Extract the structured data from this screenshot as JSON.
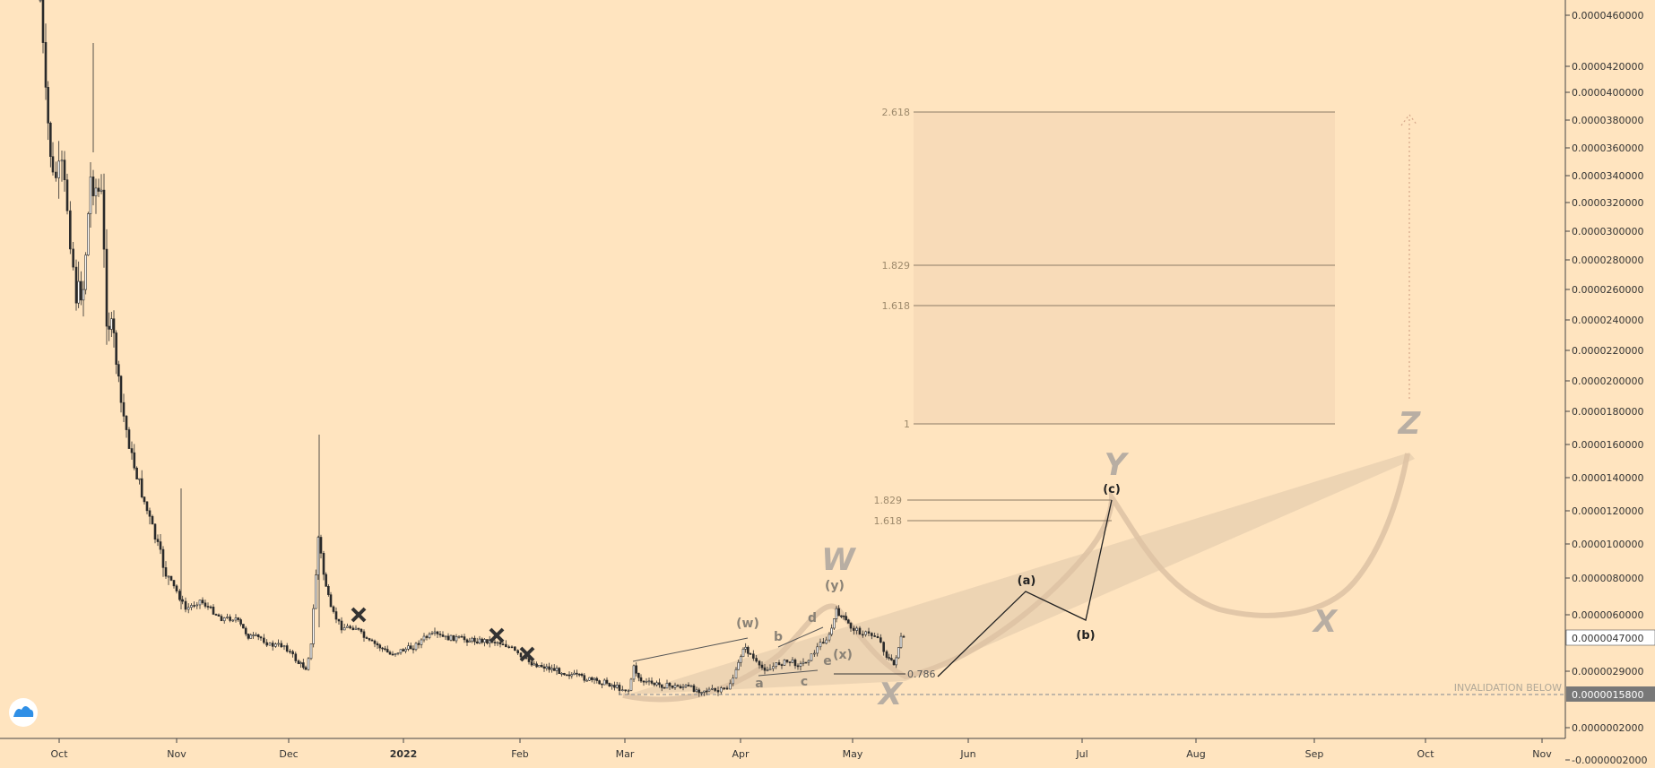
{
  "chart_data": {
    "type": "candlestick",
    "x_axis": {
      "tick_labels": [
        "Oct",
        "Nov",
        "Dec",
        "2022",
        "Feb",
        "Mar",
        "Apr",
        "May",
        "Jun",
        "Jul",
        "Aug",
        "Sep",
        "Oct",
        "Nov"
      ]
    },
    "y_axis": {
      "position": "right",
      "tick_labels": [
        "0.0000460000",
        "0.0000420000",
        "0.0000400000",
        "0.0000380000",
        "0.0000360000",
        "0.0000340000",
        "0.0000320000",
        "0.0000300000",
        "0.0000280000",
        "0.0000260000",
        "0.0000240000",
        "0.0000220000",
        "0.0000200000",
        "0.0000180000",
        "0.0000160000",
        "0.0000140000",
        "0.0000120000",
        "0.0000100000",
        "0.0000080000",
        "0.0000060000",
        "0.0000047000",
        "0.0000029000",
        "0.0000015800",
        "0.0000002000",
        "-0.0000002000"
      ],
      "current_price": "0.0000047000",
      "invalidation_price": "0.0000015800"
    },
    "candle_data_description": "Price decline from ~0.000046 in Oct 2021 to ~0.0000016 in Mar 2022, then range-bound with a rally toward ~0.0000065 in late Apr 2022",
    "fib_upper": [
      "2.618",
      "1.829",
      "1.618",
      "1"
    ],
    "fib_lower": [
      "1.829",
      "1.618"
    ],
    "fib_retrace": "0.786",
    "wave_labels_small": [
      "(w)",
      "(x)",
      "(y)",
      "a",
      "b",
      "c",
      "d",
      "e"
    ],
    "wave_labels_projection": [
      "(a)",
      "(b)",
      "(c)"
    ],
    "wave_labels_big": [
      "W",
      "X",
      "Y",
      "X",
      "Z"
    ],
    "invalidation_text": "INVALIDATION BELOW",
    "colors": {
      "background": "#ffe4bf",
      "candle": "#2b2b2b",
      "projection_fill": "#e8cfb0",
      "fib_box": "#f6d8b6",
      "price_tag_dark": "#787878",
      "invalidation_line": "#9a9a9a"
    }
  }
}
